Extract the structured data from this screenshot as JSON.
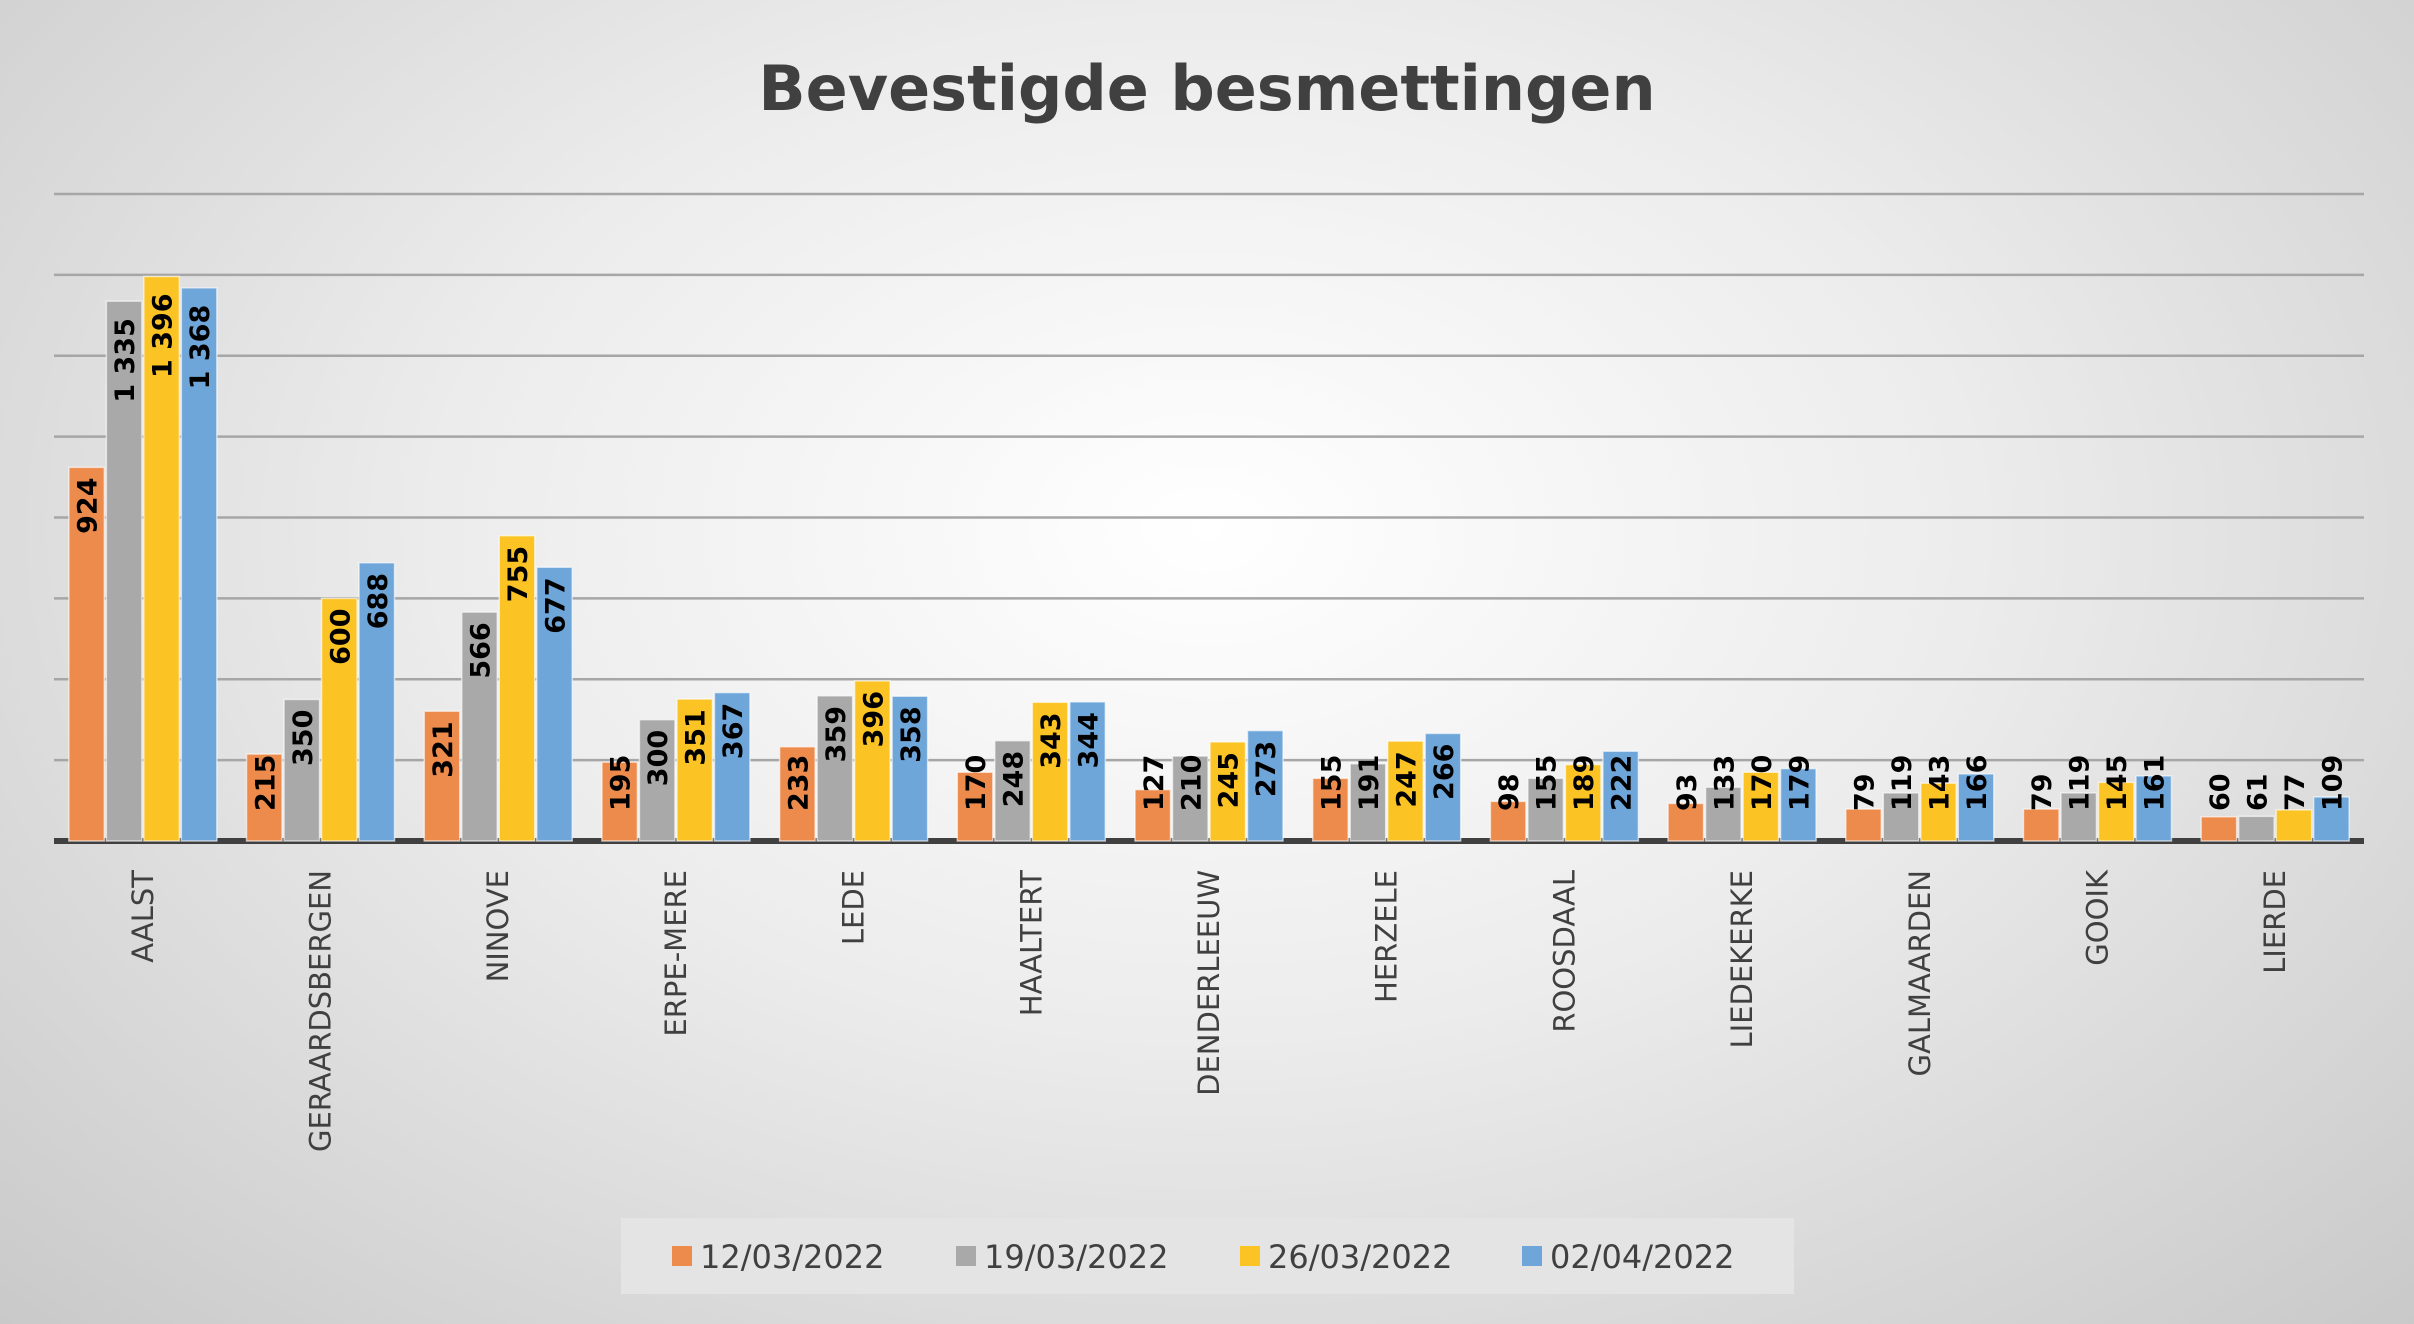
{
  "chart_data": {
    "type": "bar",
    "title": "Bevestigde besmettingen",
    "xlabel": "",
    "ylabel": "",
    "ylim": [
      0,
      1600
    ],
    "y_gridline_step": 200,
    "grid": true,
    "legend_position": "bottom",
    "categories": [
      "AALST",
      "GERAARDSBERGEN",
      "NINOVE",
      "ERPE-MERE",
      "LEDE",
      "HAALTERT",
      "DENDERLEEUW",
      "HERZELE",
      "ROOSDAAL",
      "LIEDEKERKE",
      "GALMAARDEN",
      "GOOIK",
      "LIERDE"
    ],
    "series": [
      {
        "name": "12/03/2022",
        "color": "#ED8B4D",
        "values": [
          924,
          215,
          321,
          195,
          233,
          170,
          127,
          155,
          98,
          93,
          79,
          79,
          60
        ]
      },
      {
        "name": "19/03/2022",
        "color": "#A9A9A9",
        "values": [
          1335,
          350,
          566,
          300,
          359,
          248,
          210,
          191,
          155,
          133,
          119,
          119,
          61
        ]
      },
      {
        "name": "26/03/2022",
        "color": "#FBC424",
        "values": [
          1396,
          600,
          755,
          351,
          396,
          343,
          245,
          247,
          189,
          170,
          143,
          145,
          77
        ]
      },
      {
        "name": "02/04/2022",
        "color": "#6FA6DA",
        "values": [
          1368,
          688,
          677,
          367,
          358,
          344,
          273,
          266,
          222,
          179,
          166,
          161,
          109
        ]
      }
    ]
  }
}
